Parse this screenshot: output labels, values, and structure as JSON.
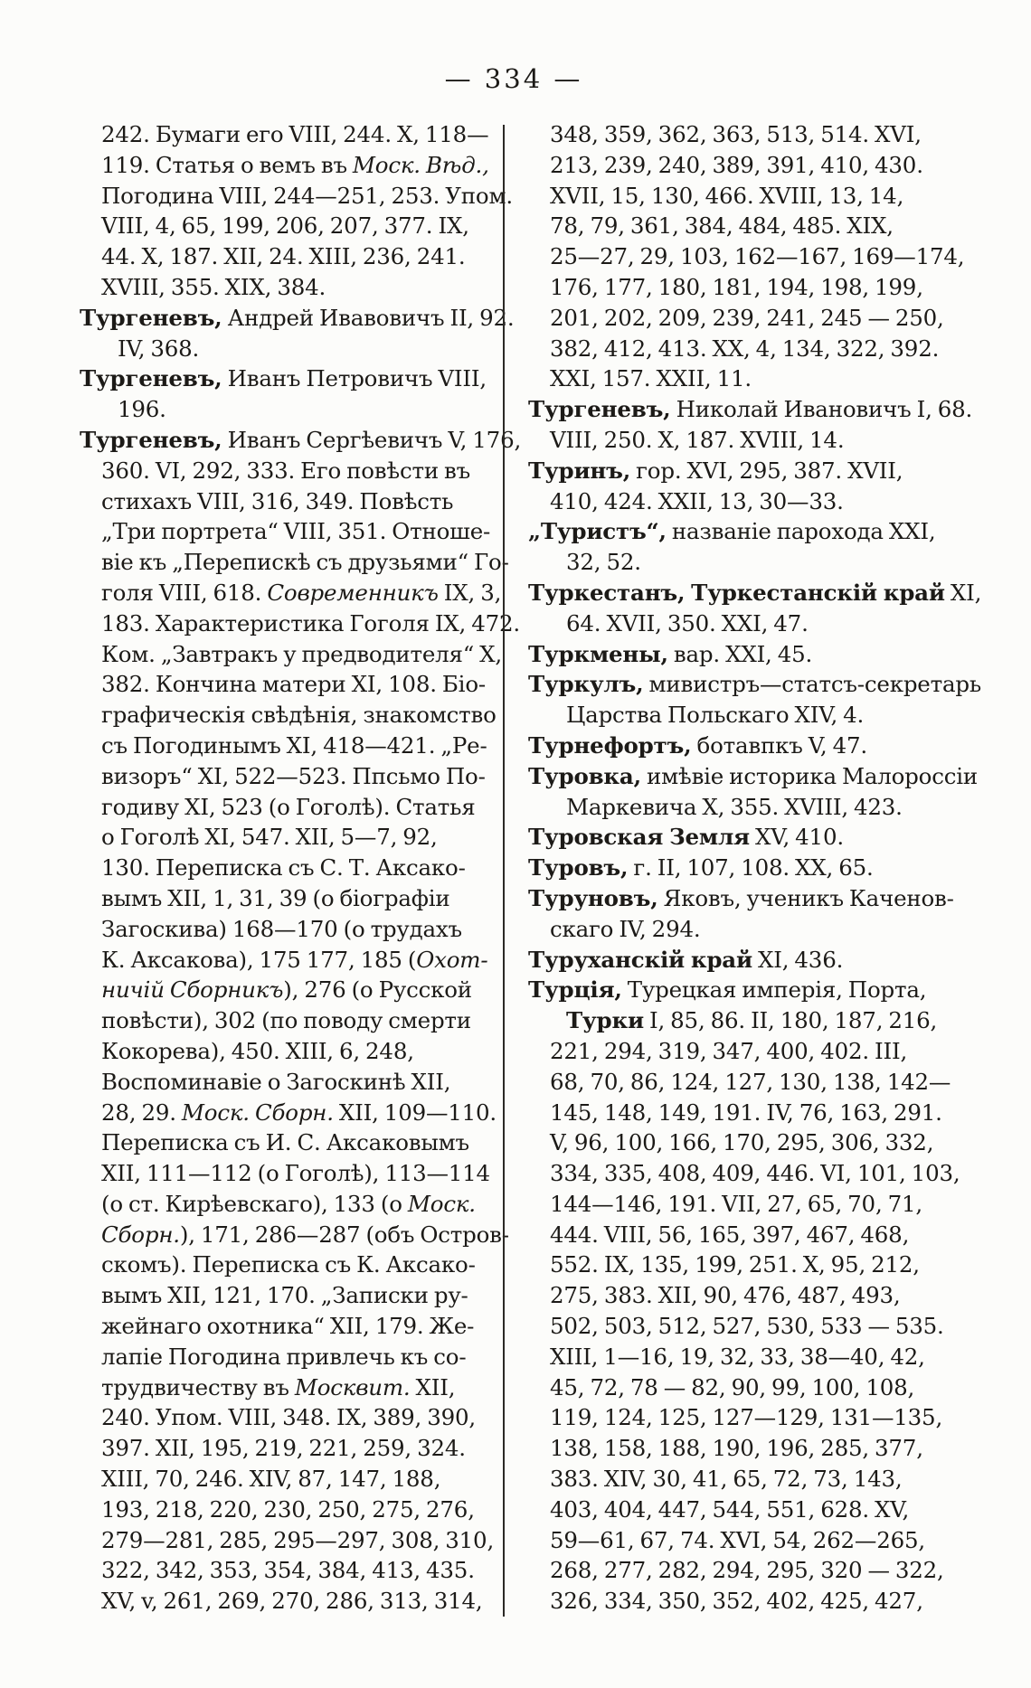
{
  "theme": {
    "ink": "#1c1a17",
    "paper": "#fcfcfa",
    "rule": "#2b2925"
  },
  "header": {
    "page_number": "— 334 —"
  },
  "columns": {
    "left": {
      "lines": [
        {
          "ind": 1,
          "seg": [
            {
              "t": "242. Бумаги его VIII, 244. X, 118—"
            }
          ]
        },
        {
          "ind": 1,
          "seg": [
            {
              "t": "119. Статья о вемъ въ "
            },
            {
              "t": "Моск. Вѣд.,",
              "i": true
            }
          ]
        },
        {
          "ind": 1,
          "seg": [
            {
              "t": "Погодина VIII, 244—251, 253. Упом."
            }
          ]
        },
        {
          "ind": 1,
          "seg": [
            {
              "t": "VIII, 4, 65, 199, 206, 207, 377. IX,"
            }
          ]
        },
        {
          "ind": 1,
          "seg": [
            {
              "t": "44. X, 187. XII, 24. XIII, 236, 241."
            }
          ]
        },
        {
          "ind": 1,
          "seg": [
            {
              "t": "XVIII, 355. XIX, 384."
            }
          ]
        },
        {
          "ind": 0,
          "seg": [
            {
              "t": "Тургеневъ,",
              "b": true
            },
            {
              "t": " Андрей Ивавовичъ II, 92."
            }
          ]
        },
        {
          "ind": 2,
          "seg": [
            {
              "t": "IV, 368."
            }
          ]
        },
        {
          "ind": 0,
          "seg": [
            {
              "t": "Тургеневъ,",
              "b": true
            },
            {
              "t": " Иванъ Петровичъ VIII,"
            }
          ]
        },
        {
          "ind": 2,
          "seg": [
            {
              "t": "196."
            }
          ]
        },
        {
          "ind": 0,
          "seg": [
            {
              "t": "Тургеневъ,",
              "b": true
            },
            {
              "t": " Иванъ Сергѣевичъ V, 176,"
            }
          ]
        },
        {
          "ind": 1,
          "seg": [
            {
              "t": "360. VI, 292, 333. Его повѣсти въ"
            }
          ]
        },
        {
          "ind": 1,
          "seg": [
            {
              "t": "стихахъ VIII, 316, 349. Повѣсть"
            }
          ]
        },
        {
          "ind": 1,
          "seg": [
            {
              "t": "„Три портрета“ VIII, 351. Отноше-"
            }
          ]
        },
        {
          "ind": 1,
          "seg": [
            {
              "t": "віе къ „Перепискѣ съ друзьями“ Го-"
            }
          ]
        },
        {
          "ind": 1,
          "seg": [
            {
              "t": "голя VIII, 618. "
            },
            {
              "t": "Современникъ",
              "i": true
            },
            {
              "t": " IX, 3,"
            }
          ]
        },
        {
          "ind": 1,
          "seg": [
            {
              "t": "183. Характеристика Гоголя IX, 472."
            }
          ]
        },
        {
          "ind": 1,
          "seg": [
            {
              "t": "Ком. „Завтракъ у предводителя“ X,"
            }
          ]
        },
        {
          "ind": 1,
          "seg": [
            {
              "t": "382. Кончина матери XI, 108. Біо-"
            }
          ]
        },
        {
          "ind": 1,
          "seg": [
            {
              "t": "графическія свѣдѣнія, знакомство"
            }
          ]
        },
        {
          "ind": 1,
          "seg": [
            {
              "t": "съ Погодинымъ XI, 418—421. „Ре-"
            }
          ]
        },
        {
          "ind": 1,
          "seg": [
            {
              "t": "визоръ“ XI, 522—523. Ппсьмо По-"
            }
          ]
        },
        {
          "ind": 1,
          "seg": [
            {
              "t": "годиву XI, 523 (о Гоголѣ). Статья"
            }
          ]
        },
        {
          "ind": 1,
          "seg": [
            {
              "t": "о Гоголѣ XI, 547. XII, 5—7, 92,"
            }
          ]
        },
        {
          "ind": 1,
          "seg": [
            {
              "t": "130. Переписка съ С. Т. Аксако-"
            }
          ]
        },
        {
          "ind": 1,
          "seg": [
            {
              "t": "вымъ XII, 1, 31, 39 (о біографіи"
            }
          ]
        },
        {
          "ind": 1,
          "seg": [
            {
              "t": "Загоскива) 168—170 (о трудахъ"
            }
          ]
        },
        {
          "ind": 1,
          "seg": [
            {
              "t": "К. Аксакова), 175 177, 185 ("
            },
            {
              "t": "Охот-",
              "i": true
            }
          ]
        },
        {
          "ind": 1,
          "seg": [
            {
              "t": "ничій Сборникъ",
              "i": true
            },
            {
              "t": "), 276 (о Русской"
            }
          ]
        },
        {
          "ind": 1,
          "seg": [
            {
              "t": "повѣсти), 302 (по поводу смерти"
            }
          ]
        },
        {
          "ind": 1,
          "seg": [
            {
              "t": "Кокорева), 450. XIII, 6, 248,"
            }
          ]
        },
        {
          "ind": 1,
          "seg": [
            {
              "t": "Воспоминавіе о Загоскинѣ XII,"
            }
          ]
        },
        {
          "ind": 1,
          "seg": [
            {
              "t": "28, 29. "
            },
            {
              "t": "Моск. Сборн.",
              "i": true
            },
            {
              "t": " XII, 109—110."
            }
          ]
        },
        {
          "ind": 1,
          "seg": [
            {
              "t": "Переписка съ И. С. Аксаковымъ"
            }
          ]
        },
        {
          "ind": 1,
          "seg": [
            {
              "t": "XII, 111—112 (о Гоголѣ), 113—114"
            }
          ]
        },
        {
          "ind": 1,
          "seg": [
            {
              "t": "(о ст. Кирѣевскаго), 133 (о "
            },
            {
              "t": "Моск.",
              "i": true
            }
          ]
        },
        {
          "ind": 1,
          "seg": [
            {
              "t": "Сборн.",
              "i": true
            },
            {
              "t": "), 171, 286—287 (объ Остров-"
            }
          ]
        },
        {
          "ind": 1,
          "seg": [
            {
              "t": "скомъ). Переписка съ К. Аксако-"
            }
          ]
        },
        {
          "ind": 1,
          "seg": [
            {
              "t": "вымъ XII, 121, 170. „Записки ру-"
            }
          ]
        },
        {
          "ind": 1,
          "seg": [
            {
              "t": "жейнаго охотника“ XII, 179. Же-"
            }
          ]
        },
        {
          "ind": 1,
          "seg": [
            {
              "t": "лапіе Погодина привлечь къ со-"
            }
          ]
        },
        {
          "ind": 1,
          "seg": [
            {
              "t": "трудвичеству въ "
            },
            {
              "t": "Москвит.",
              "i": true
            },
            {
              "t": " XII,"
            }
          ]
        },
        {
          "ind": 1,
          "seg": [
            {
              "t": "240. Упом. VIII, 348. IX, 389, 390,"
            }
          ]
        },
        {
          "ind": 1,
          "seg": [
            {
              "t": "397. XII, 195, 219, 221, 259, 324."
            }
          ]
        },
        {
          "ind": 1,
          "seg": [
            {
              "t": "XIII, 70, 246. XIV, 87, 147, 188,"
            }
          ]
        },
        {
          "ind": 1,
          "seg": [
            {
              "t": "193, 218, 220, 230, 250, 275, 276,"
            }
          ]
        },
        {
          "ind": 1,
          "seg": [
            {
              "t": "279—281, 285, 295—297, 308, 310,"
            }
          ]
        },
        {
          "ind": 1,
          "seg": [
            {
              "t": "322, 342, 353, 354, 384, 413, 435."
            }
          ]
        },
        {
          "ind": 1,
          "seg": [
            {
              "t": "XV, v, 261, 269, 270, 286, 313, 314,"
            }
          ]
        }
      ]
    },
    "right": {
      "lines": [
        {
          "ind": 1,
          "seg": [
            {
              "t": "348, 359, 362, 363, 513, 514. XVI,"
            }
          ]
        },
        {
          "ind": 1,
          "seg": [
            {
              "t": "213, 239, 240, 389, 391, 410, 430."
            }
          ]
        },
        {
          "ind": 1,
          "seg": [
            {
              "t": "XVII, 15, 130, 466. XVIII, 13, 14,"
            }
          ]
        },
        {
          "ind": 1,
          "seg": [
            {
              "t": "78, 79, 361, 384, 484, 485. XIX,"
            }
          ]
        },
        {
          "ind": 1,
          "seg": [
            {
              "t": "25—27, 29, 103, 162—167, 169—174,"
            }
          ]
        },
        {
          "ind": 1,
          "seg": [
            {
              "t": "176, 177, 180, 181, 194, 198, 199,"
            }
          ]
        },
        {
          "ind": 1,
          "seg": [
            {
              "t": "201, 202, 209, 239, 241, 245 — 250,"
            }
          ]
        },
        {
          "ind": 1,
          "seg": [
            {
              "t": "382, 412, 413. XX, 4, 134, 322, 392."
            }
          ]
        },
        {
          "ind": 1,
          "seg": [
            {
              "t": "XXI, 157. XXII, 11."
            }
          ]
        },
        {
          "ind": 0,
          "seg": [
            {
              "t": "Тургеневъ,",
              "b": true
            },
            {
              "t": " Николай Ивановичъ I, 68."
            }
          ]
        },
        {
          "ind": 1,
          "seg": [
            {
              "t": "VIII, 250. X, 187. XVIII, 14."
            }
          ]
        },
        {
          "ind": 0,
          "seg": [
            {
              "t": "Туринъ,",
              "b": true
            },
            {
              "t": " гор. XVI, 295, 387. XVII,"
            }
          ]
        },
        {
          "ind": 1,
          "seg": [
            {
              "t": "410, 424. XXII, 13, 30—33."
            }
          ]
        },
        {
          "ind": 0,
          "seg": [
            {
              "t": "„Туристъ“,",
              "b": true
            },
            {
              "t": " названіе парохода XXI,"
            }
          ]
        },
        {
          "ind": 2,
          "seg": [
            {
              "t": "32, 52."
            }
          ]
        },
        {
          "ind": 0,
          "seg": [
            {
              "t": "Туркестанъ, Туркестанскій край",
              "b": true
            },
            {
              "t": " XI,"
            }
          ]
        },
        {
          "ind": 2,
          "seg": [
            {
              "t": "64. XVII, 350. XXI, 47."
            }
          ]
        },
        {
          "ind": 0,
          "seg": [
            {
              "t": "Туркмены,",
              "b": true
            },
            {
              "t": " вар. XXI, 45."
            }
          ]
        },
        {
          "ind": 0,
          "seg": [
            {
              "t": "Туркулъ,",
              "b": true
            },
            {
              "t": " мивистръ—статсъ-секретарь"
            }
          ]
        },
        {
          "ind": 2,
          "seg": [
            {
              "t": "Царства Польскаго XIV, 4."
            }
          ]
        },
        {
          "ind": 0,
          "seg": [
            {
              "t": "Турнефортъ,",
              "b": true
            },
            {
              "t": " ботавпкъ V, 47."
            }
          ]
        },
        {
          "ind": 0,
          "seg": [
            {
              "t": "Туровка,",
              "b": true
            },
            {
              "t": " имѣвіе историка Малороссіи"
            }
          ]
        },
        {
          "ind": 2,
          "seg": [
            {
              "t": "Маркевича X, 355. XVIII, 423."
            }
          ]
        },
        {
          "ind": 0,
          "seg": [
            {
              "t": "Туровская Земля",
              "b": true
            },
            {
              "t": " XV, 410."
            }
          ]
        },
        {
          "ind": 0,
          "seg": [
            {
              "t": "Туровъ,",
              "b": true
            },
            {
              "t": " г. II, 107, 108. XX, 65."
            }
          ]
        },
        {
          "ind": 0,
          "seg": [
            {
              "t": "Туруновъ,",
              "b": true
            },
            {
              "t": " Яковъ, ученикъ Каченов-"
            }
          ]
        },
        {
          "ind": 1,
          "seg": [
            {
              "t": "скаго IV, 294."
            }
          ]
        },
        {
          "ind": 0,
          "seg": [
            {
              "t": "Туруханскій край",
              "b": true
            },
            {
              "t": " XI, 436."
            }
          ]
        },
        {
          "ind": 0,
          "seg": [
            {
              "t": "Турція,",
              "b": true
            },
            {
              "t": " Турецкая имперія, Порта,"
            }
          ]
        },
        {
          "ind": 2,
          "seg": [
            {
              "t": "Турки",
              "b": true
            },
            {
              "t": " I, 85, 86. II, 180, 187, 216,"
            }
          ]
        },
        {
          "ind": 1,
          "seg": [
            {
              "t": "221, 294, 319, 347, 400, 402. III,"
            }
          ]
        },
        {
          "ind": 1,
          "seg": [
            {
              "t": "68, 70, 86, 124, 127, 130, 138, 142—"
            }
          ]
        },
        {
          "ind": 1,
          "seg": [
            {
              "t": "145, 148, 149, 191. IV, 76, 163, 291."
            }
          ]
        },
        {
          "ind": 1,
          "seg": [
            {
              "t": "V, 96, 100, 166, 170, 295, 306, 332,"
            }
          ]
        },
        {
          "ind": 1,
          "seg": [
            {
              "t": "334, 335, 408, 409, 446. VI, 101, 103,"
            }
          ]
        },
        {
          "ind": 1,
          "seg": [
            {
              "t": "144—146, 191. VII, 27, 65, 70, 71,"
            }
          ]
        },
        {
          "ind": 1,
          "seg": [
            {
              "t": "444. VIII, 56, 165, 397, 467, 468,"
            }
          ]
        },
        {
          "ind": 1,
          "seg": [
            {
              "t": "552. IX, 135, 199, 251. X, 95, 212,"
            }
          ]
        },
        {
          "ind": 1,
          "seg": [
            {
              "t": "275, 383. XII, 90, 476, 487, 493,"
            }
          ]
        },
        {
          "ind": 1,
          "seg": [
            {
              "t": "502, 503, 512, 527, 530, 533 — 535."
            }
          ]
        },
        {
          "ind": 1,
          "seg": [
            {
              "t": "XIII, 1—16, 19, 32, 33, 38—40, 42,"
            }
          ]
        },
        {
          "ind": 1,
          "seg": [
            {
              "t": "45, 72, 78 — 82, 90, 99, 100, 108,"
            }
          ]
        },
        {
          "ind": 1,
          "seg": [
            {
              "t": "119, 124, 125, 127—129, 131—135,"
            }
          ]
        },
        {
          "ind": 1,
          "seg": [
            {
              "t": "138, 158, 188, 190, 196, 285, 377,"
            }
          ]
        },
        {
          "ind": 1,
          "seg": [
            {
              "t": "383. XIV, 30, 41, 65, 72, 73, 143,"
            }
          ]
        },
        {
          "ind": 1,
          "seg": [
            {
              "t": "403, 404, 447, 544, 551, 628. XV,"
            }
          ]
        },
        {
          "ind": 1,
          "seg": [
            {
              "t": "59—61, 67, 74. XVI, 54, 262—265,"
            }
          ]
        },
        {
          "ind": 1,
          "seg": [
            {
              "t": "268, 277, 282, 294, 295, 320 — 322,"
            }
          ]
        },
        {
          "ind": 1,
          "seg": [
            {
              "t": "326, 334, 350, 352, 402, 425, 427,"
            }
          ]
        }
      ]
    }
  }
}
